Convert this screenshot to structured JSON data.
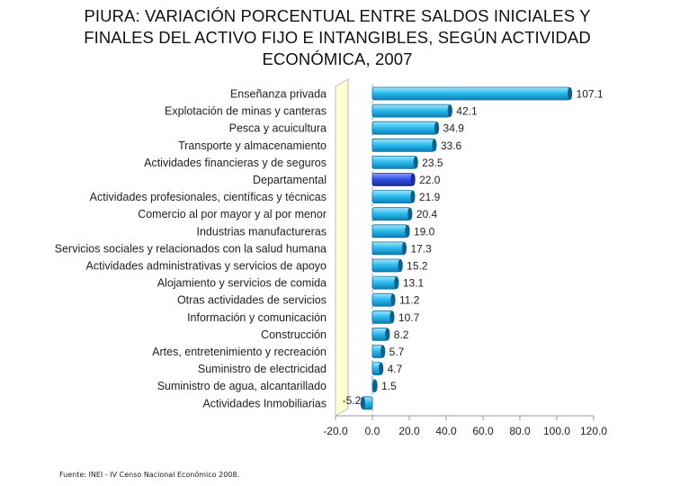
{
  "title_lines": [
    "PIURA: VARIACIÓN PORCENTUAL ENTRE SALDOS INICIALES Y",
    "FINALES DEL ACTIVO FIJO E INTANGIBLES, SEGÚN ACTIVIDAD",
    "ECONÓMICA, 2007"
  ],
  "source": "Fuente: INEI - IV Censo Nacional Económico 2008.",
  "colors": {
    "bar": "#29b9ec",
    "bar_dark": "#0a6fa0",
    "highlight": "#2f4fe0",
    "highlight_dark": "#1a2b9a",
    "wall": "#ffffd0"
  },
  "chart_data": {
    "type": "bar",
    "orientation": "horizontal",
    "title": "PIURA: VARIACIÓN PORCENTUAL ENTRE SALDOS INICIALES Y FINALES DEL ACTIVO FIJO E INTANGIBLES, SEGÚN ACTIVIDAD ECONÓMICA, 2007",
    "xlim": [
      -20,
      120
    ],
    "xticks": [
      -20,
      0,
      20,
      40,
      60,
      80,
      100,
      120
    ],
    "xtick_labels": [
      "-20.0",
      "0.0",
      "20.0",
      "40.0",
      "60.0",
      "80.0",
      "100.0",
      "120.0"
    ],
    "highlight_category": "Departamental",
    "categories": [
      "Enseñanza privada",
      "Explotación de minas y canteras",
      "Pesca y acuicultura",
      "Transporte y almacenamiento",
      "Actividades financieras y de seguros",
      "Departamental",
      "Actividades profesionales, científicas y técnicas",
      "Comercio al por mayor y al por menor",
      "Industrias manufactureras",
      "Servicios sociales y relacionados con la salud humana",
      "Actividades administrativas y servicios de apoyo",
      "Alojamiento y servicios de comida",
      "Otras actividades de servicios",
      "Información y comunicación",
      "Construcción",
      "Artes, entretenimiento y recreación",
      "Suministro de electricidad",
      "Suministro de agua, alcantarillado",
      "Actividades Inmobiliarias"
    ],
    "values": [
      107.1,
      42.1,
      34.9,
      33.6,
      23.5,
      22.0,
      21.9,
      20.4,
      19.0,
      17.3,
      15.2,
      13.1,
      11.2,
      10.7,
      8.2,
      5.7,
      4.7,
      1.5,
      -5.2
    ],
    "value_labels": [
      "107.1",
      "42.1",
      "34.9",
      "33.6",
      "23.5",
      "22.0",
      "21.9",
      "20.4",
      "19.0",
      "17.3",
      "15.2",
      "13.1",
      "11.2",
      "10.7",
      "8.2",
      "5.7",
      "4.7",
      "1.5",
      "-5.2"
    ]
  }
}
